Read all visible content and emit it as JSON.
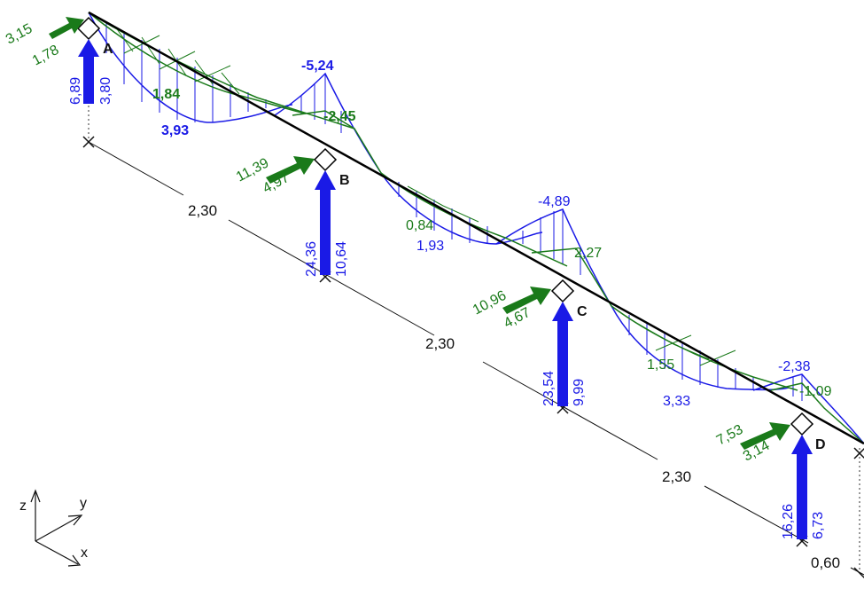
{
  "colors": {
    "moment": "#1a1ae6",
    "shear": "#1a7a1a",
    "beam": "#000000",
    "dimension": "#111111"
  },
  "supports": {
    "A": {
      "label": "A",
      "reaction_z_max": "6,89",
      "reaction_z_min": "3,80",
      "reaction_y_max": "3,15",
      "reaction_y_min": "1,78"
    },
    "B": {
      "label": "B",
      "reaction_z_max": "24,36",
      "reaction_z_min": "10,64",
      "reaction_y_max": "11,39",
      "reaction_y_min": "4,97"
    },
    "C": {
      "label": "C",
      "reaction_z_max": "23,54",
      "reaction_z_min": "9,99",
      "reaction_y_max": "10,96",
      "reaction_y_min": "4,67"
    },
    "D": {
      "label": "D",
      "reaction_z_max": "16,26",
      "reaction_z_min": "6,73",
      "reaction_y_max": "7,53",
      "reaction_y_min": "3,14"
    }
  },
  "spans": [
    "2,30",
    "2,30",
    "2,30",
    "0,60"
  ],
  "moments": {
    "span1_max": "3,93",
    "support_B": "-5,24",
    "span2_max": "1,93",
    "support_C": "-4,89",
    "span3_max": "3,33",
    "support_D": "-2,38"
  },
  "shear_moments": {
    "span1": "1,84",
    "support_B": "-2,45",
    "span2": "0,84",
    "support_C": "2,27",
    "span3": "1,55",
    "support_D": "-1,09"
  },
  "axes": {
    "x": "x",
    "y": "y",
    "z": "z"
  }
}
